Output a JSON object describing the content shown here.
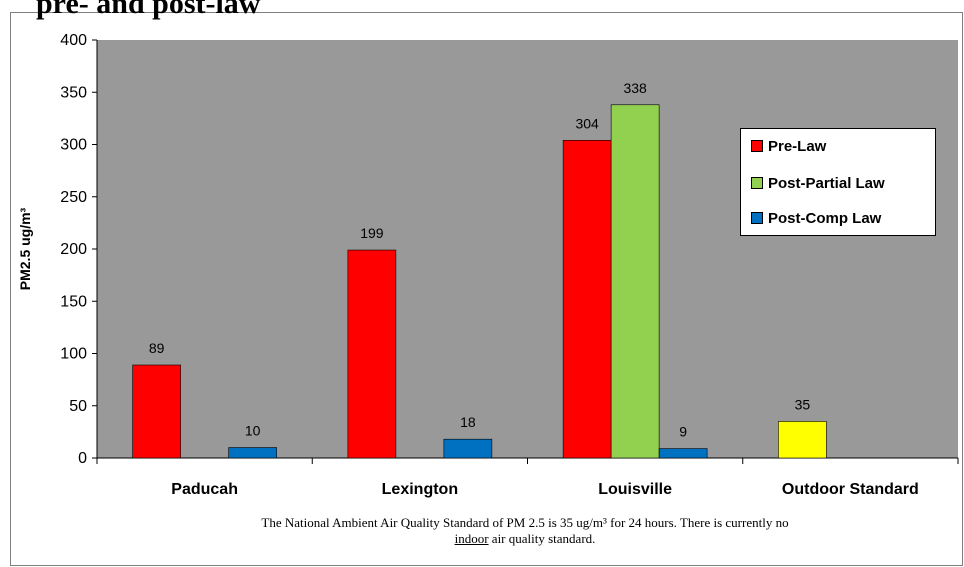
{
  "title": "pre- and post-law",
  "footnote": {
    "line1": "The National Ambient Air Quality Standard of PM 2.5 is 35 ug/m³ for 24 hours. There is currently no",
    "line2_underlined": "indoor",
    "line2_rest": " air quality standard."
  },
  "chart_data": {
    "type": "bar",
    "ylabel": "PM2.5 ug/m³",
    "xlabel": "",
    "ylim": [
      0,
      400
    ],
    "yticks": [
      0,
      50,
      100,
      150,
      200,
      250,
      300,
      350,
      400
    ],
    "grid": false,
    "background": "#999999",
    "legend_position": "right",
    "categories": [
      "Paducah",
      "Lexington",
      "Louisville",
      "Outdoor Standard"
    ],
    "series": [
      {
        "name": "Pre-Law",
        "color": "#ff0000",
        "values": [
          89,
          199,
          304,
          null
        ]
      },
      {
        "name": "Post-Partial Law",
        "color": "#92d050",
        "values": [
          null,
          null,
          338,
          null
        ]
      },
      {
        "name": "Post-Comp Law",
        "color": "#0070c0",
        "values": [
          10,
          18,
          9,
          null
        ]
      }
    ],
    "extra_bars": [
      {
        "category": "Outdoor Standard",
        "value": 35,
        "color": "#ffff00"
      }
    ]
  }
}
